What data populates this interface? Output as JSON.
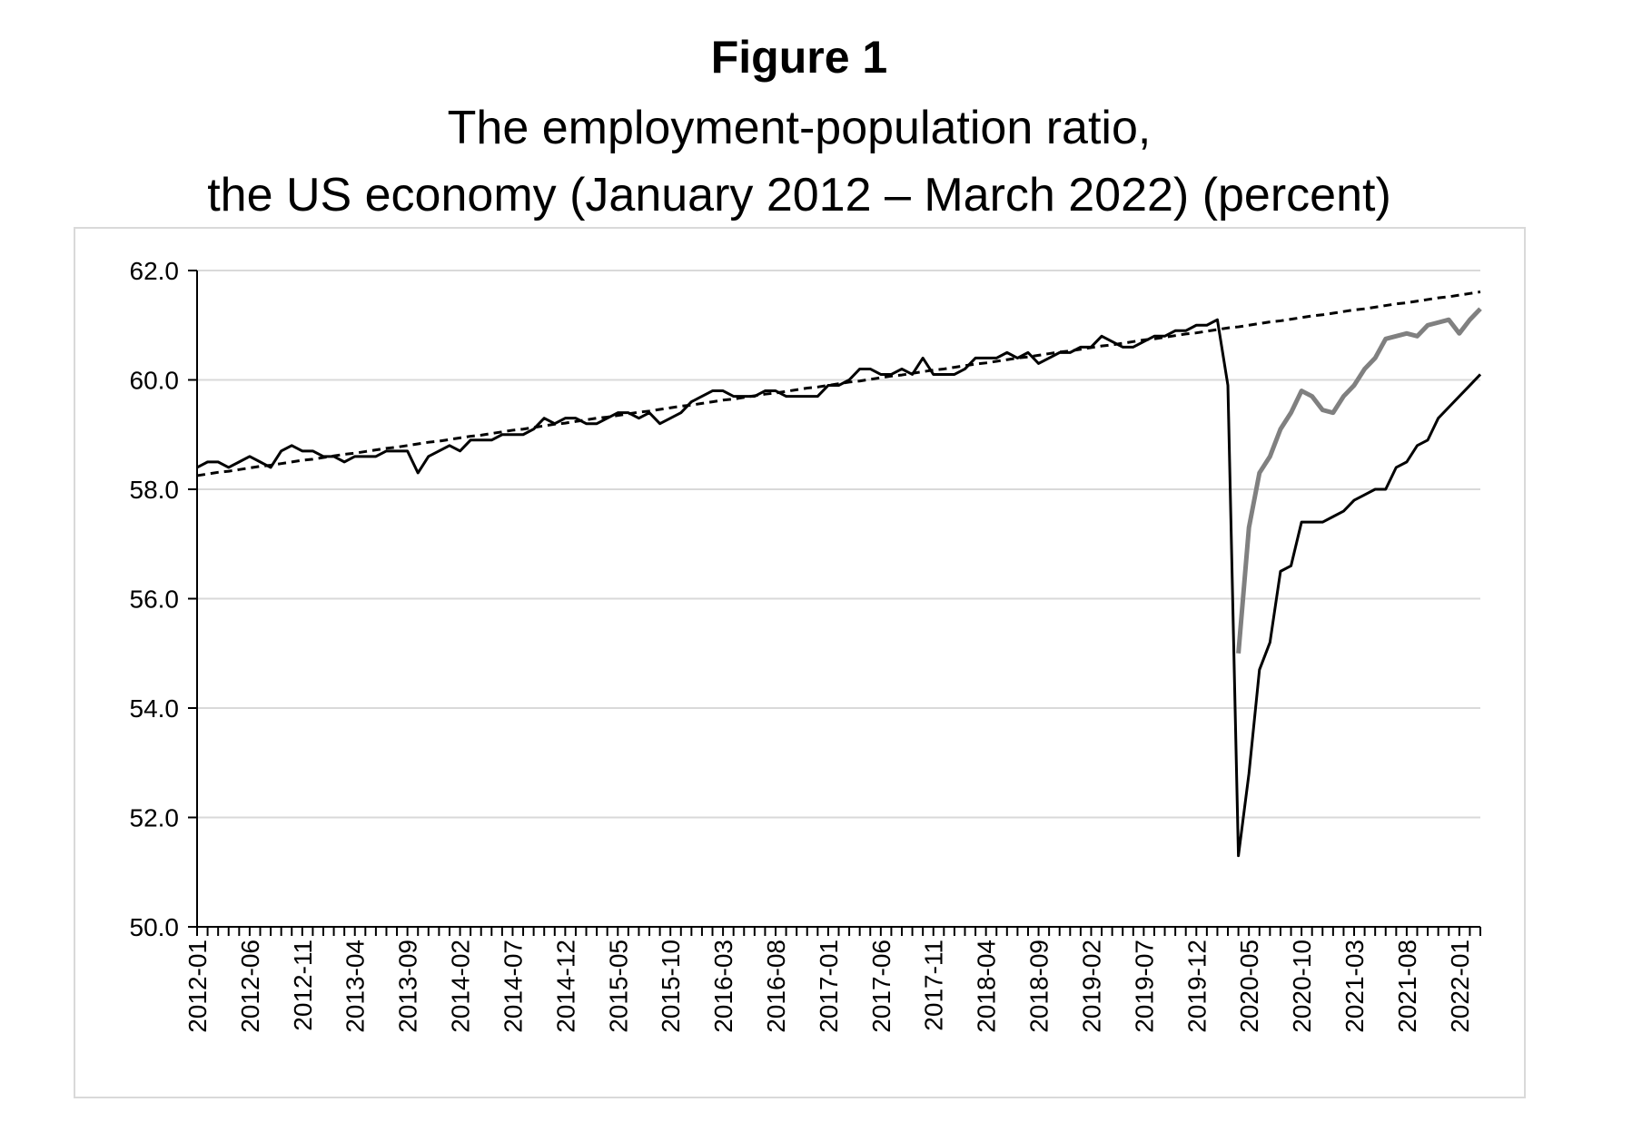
{
  "chart_data": {
    "type": "line",
    "title": "Figure 1",
    "subtitle": [
      "The employment-population ratio,",
      "the US economy (January 2012 – March 2022) (percent)"
    ],
    "categories": [
      "2012-01",
      null,
      null,
      null,
      null,
      "2012-06",
      null,
      null,
      null,
      null,
      "2012-11",
      null,
      null,
      null,
      null,
      "2013-04",
      null,
      null,
      null,
      null,
      "2013-09",
      null,
      null,
      null,
      null,
      "2014-02",
      null,
      null,
      null,
      null,
      "2014-07",
      null,
      null,
      null,
      null,
      "2014-12",
      null,
      null,
      null,
      null,
      "2015-05",
      null,
      null,
      null,
      null,
      "2015-10",
      null,
      null,
      null,
      null,
      "2016-03",
      null,
      null,
      null,
      null,
      "2016-08",
      null,
      null,
      null,
      null,
      "2017-01",
      null,
      null,
      null,
      null,
      "2017-06",
      null,
      null,
      null,
      null,
      "2017-11",
      null,
      null,
      null,
      null,
      "2018-04",
      null,
      null,
      null,
      null,
      "2018-09",
      null,
      null,
      null,
      null,
      "2019-02",
      null,
      null,
      null,
      null,
      "2019-07",
      null,
      null,
      null,
      null,
      "2019-12",
      null,
      null,
      null,
      null,
      "2020-05",
      null,
      null,
      null,
      null,
      "2020-10",
      null,
      null,
      null,
      null,
      "2021-03",
      null,
      null,
      null,
      null,
      "2021-08",
      null,
      null,
      null,
      null,
      "2022-01",
      null,
      null
    ],
    "series": [
      {
        "color": "#000000",
        "dashed": false,
        "values": [
          58.4,
          58.5,
          58.5,
          58.4,
          58.5,
          58.6,
          58.5,
          58.4,
          58.7,
          58.8,
          58.7,
          58.7,
          58.6,
          58.6,
          58.5,
          58.6,
          58.6,
          58.6,
          58.7,
          58.7,
          58.7,
          58.3,
          58.6,
          58.7,
          58.8,
          58.7,
          58.9,
          58.9,
          58.9,
          59.0,
          59.0,
          59.0,
          59.1,
          59.3,
          59.2,
          59.3,
          59.3,
          59.2,
          59.2,
          59.3,
          59.4,
          59.4,
          59.3,
          59.4,
          59.2,
          59.3,
          59.4,
          59.6,
          59.7,
          59.8,
          59.8,
          59.7,
          59.7,
          59.7,
          59.8,
          59.8,
          59.7,
          59.7,
          59.7,
          59.7,
          59.9,
          59.9,
          60.0,
          60.2,
          60.2,
          60.1,
          60.1,
          60.2,
          60.1,
          60.4,
          60.1,
          60.1,
          60.1,
          60.2,
          60.4,
          60.4,
          60.4,
          60.5,
          60.4,
          60.5,
          60.3,
          60.4,
          60.5,
          60.5,
          60.6,
          60.6,
          60.8,
          60.7,
          60.6,
          60.6,
          60.7,
          60.8,
          60.8,
          60.9,
          60.9,
          61.0,
          61.0,
          61.1,
          59.9,
          51.3,
          52.8,
          54.7,
          55.2,
          56.5,
          56.6,
          57.4,
          57.4,
          57.4,
          57.5,
          57.6,
          57.8,
          57.9,
          58.0,
          58.0,
          58.4,
          58.5,
          58.8,
          58.9,
          59.3,
          59.5,
          59.7,
          59.9,
          60.1
        ]
      },
      {
        "color": "#808080",
        "dashed": false,
        "values": [
          null,
          null,
          null,
          null,
          null,
          null,
          null,
          null,
          null,
          null,
          null,
          null,
          null,
          null,
          null,
          null,
          null,
          null,
          null,
          null,
          null,
          null,
          null,
          null,
          null,
          null,
          null,
          null,
          null,
          null,
          null,
          null,
          null,
          null,
          null,
          null,
          null,
          null,
          null,
          null,
          null,
          null,
          null,
          null,
          null,
          null,
          null,
          null,
          null,
          null,
          null,
          null,
          null,
          null,
          null,
          null,
          null,
          null,
          null,
          null,
          null,
          null,
          null,
          null,
          null,
          null,
          null,
          null,
          null,
          null,
          null,
          null,
          null,
          null,
          null,
          null,
          null,
          null,
          null,
          null,
          null,
          null,
          null,
          null,
          null,
          null,
          null,
          null,
          null,
          null,
          null,
          null,
          null,
          null,
          null,
          null,
          null,
          null,
          null,
          55.0,
          57.3,
          58.3,
          58.6,
          59.1,
          59.4,
          59.8,
          59.7,
          59.45,
          59.4,
          59.7,
          59.9,
          60.2,
          60.4,
          60.75,
          60.8,
          60.85,
          60.8,
          61.0,
          61.05,
          61.1,
          60.85,
          61.1,
          61.3
        ]
      },
      {
        "color": "#000000",
        "dashed": true,
        "values": [
          58.25,
          58.28,
          58.31,
          58.33,
          58.36,
          58.39,
          58.42,
          58.44,
          58.47,
          58.5,
          58.53,
          58.55,
          58.58,
          58.61,
          58.64,
          58.66,
          58.69,
          58.72,
          58.75,
          58.77,
          58.8,
          58.83,
          58.86,
          58.88,
          58.91,
          58.94,
          58.97,
          58.99,
          59.02,
          59.05,
          59.08,
          59.1,
          59.13,
          59.16,
          59.19,
          59.21,
          59.24,
          59.27,
          59.3,
          59.32,
          59.35,
          59.38,
          59.41,
          59.43,
          59.46,
          59.49,
          59.52,
          59.54,
          59.57,
          59.6,
          59.63,
          59.65,
          59.68,
          59.71,
          59.74,
          59.76,
          59.79,
          59.82,
          59.85,
          59.87,
          59.9,
          59.93,
          59.96,
          59.98,
          60.01,
          60.04,
          60.07,
          60.09,
          60.12,
          60.15,
          60.18,
          60.2,
          60.23,
          60.26,
          60.29,
          60.31,
          60.34,
          60.37,
          60.4,
          60.42,
          60.45,
          60.48,
          60.51,
          60.53,
          60.56,
          60.59,
          60.62,
          60.64,
          60.67,
          60.7,
          60.73,
          60.75,
          60.78,
          60.81,
          60.84,
          60.86,
          60.89,
          60.92,
          60.95,
          60.97,
          61.0,
          61.03,
          61.06,
          61.08,
          61.11,
          61.14,
          61.17,
          61.19,
          61.22,
          61.25,
          61.28,
          61.3,
          61.33,
          61.36,
          61.39,
          61.41,
          61.44,
          61.47,
          61.5,
          61.52,
          61.55,
          61.58,
          61.61
        ]
      }
    ],
    "ylim": [
      50,
      62
    ],
    "yticks": [
      {
        "value": 50,
        "label": "50.0"
      },
      {
        "value": 52,
        "label": "52.0"
      },
      {
        "value": 54,
        "label": "54.0"
      },
      {
        "value": 56,
        "label": "56.0"
      },
      {
        "value": 58,
        "label": "58.0"
      },
      {
        "value": 60,
        "label": "60.0"
      },
      {
        "value": 62,
        "label": "62.0"
      }
    ],
    "grid": true
  }
}
